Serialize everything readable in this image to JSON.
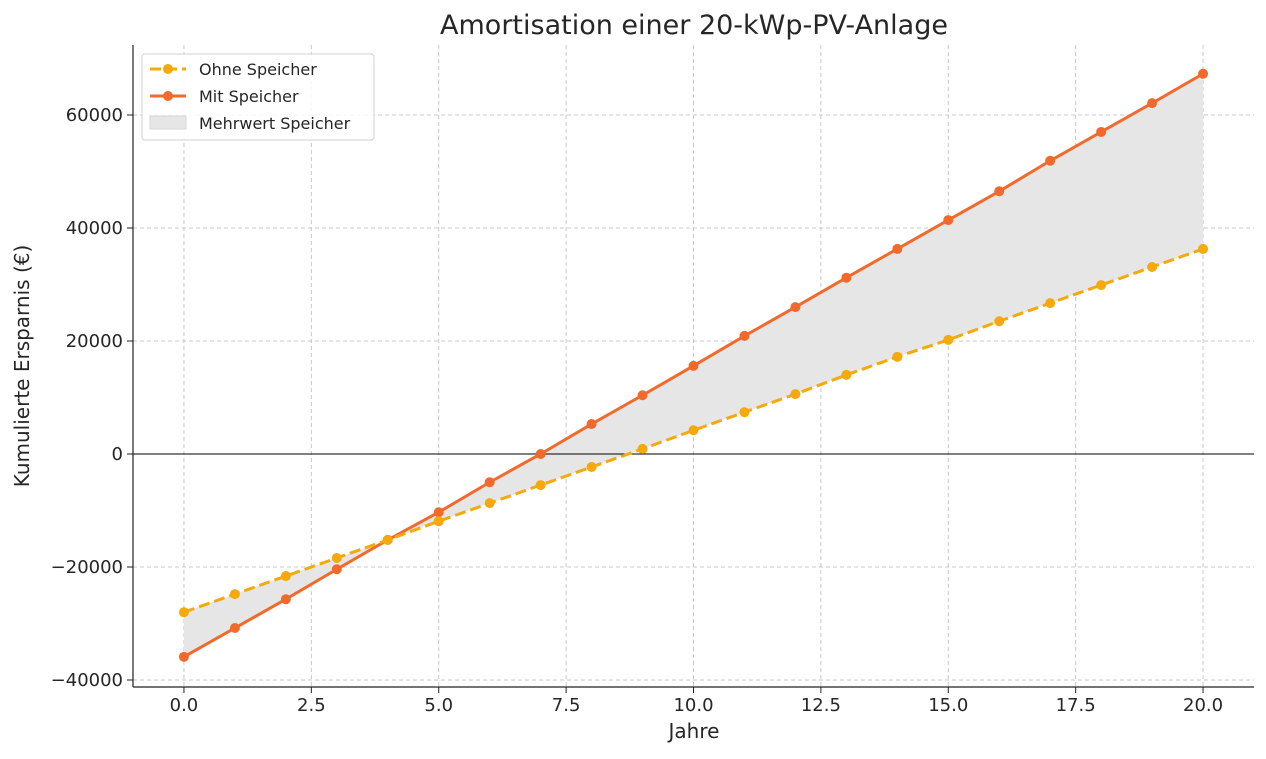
{
  "chart_data": {
    "type": "line",
    "title": "Amortisation einer 20-kWp-PV-Anlage",
    "xlabel": "Jahre",
    "ylabel": "Kumulierte Ersparnis (€)",
    "xlim": [
      -1,
      21
    ],
    "ylim": [
      -41240,
      72390
    ],
    "xticks": [
      0,
      2.5,
      5,
      7.5,
      10,
      12.5,
      15,
      17.5,
      20
    ],
    "xtick_labels": [
      "0.0",
      "2.5",
      "5.0",
      "7.5",
      "10.0",
      "12.5",
      "15.0",
      "17.5",
      "20.0"
    ],
    "yticks": [
      -40000,
      -20000,
      0,
      20000,
      40000,
      60000
    ],
    "ytick_labels": [
      "−40000",
      "−20000",
      "0",
      "20000",
      "40000",
      "60000"
    ],
    "grid": true,
    "legend_position": "top-left",
    "x": [
      0,
      1,
      2,
      3,
      4,
      5,
      6,
      7,
      8,
      9,
      10,
      11,
      12,
      13,
      14,
      15,
      16,
      17,
      18,
      19,
      20
    ],
    "series": [
      {
        "name": "Ohne Speicher",
        "color": "#F5A90A",
        "style": "dashed",
        "values": [
          -28000,
          -24800,
          -21600,
          -18400,
          -15200,
          -11900,
          -8700,
          -5500,
          -2300,
          900,
          4200,
          7400,
          10600,
          14000,
          17200,
          20200,
          23500,
          26700,
          29900,
          33100,
          36300
        ]
      },
      {
        "name": "Mit Speicher",
        "color": "#F26A2B",
        "style": "solid",
        "values": [
          -35900,
          -30800,
          -25700,
          -20400,
          -15200,
          -10300,
          -5000,
          0,
          5300,
          10400,
          15600,
          20900,
          26000,
          31200,
          36300,
          41400,
          46500,
          51900,
          57000,
          62100,
          67300
        ]
      }
    ],
    "fill": {
      "name": "Mehrwert Speicher",
      "color": "#E6E6E6"
    }
  }
}
